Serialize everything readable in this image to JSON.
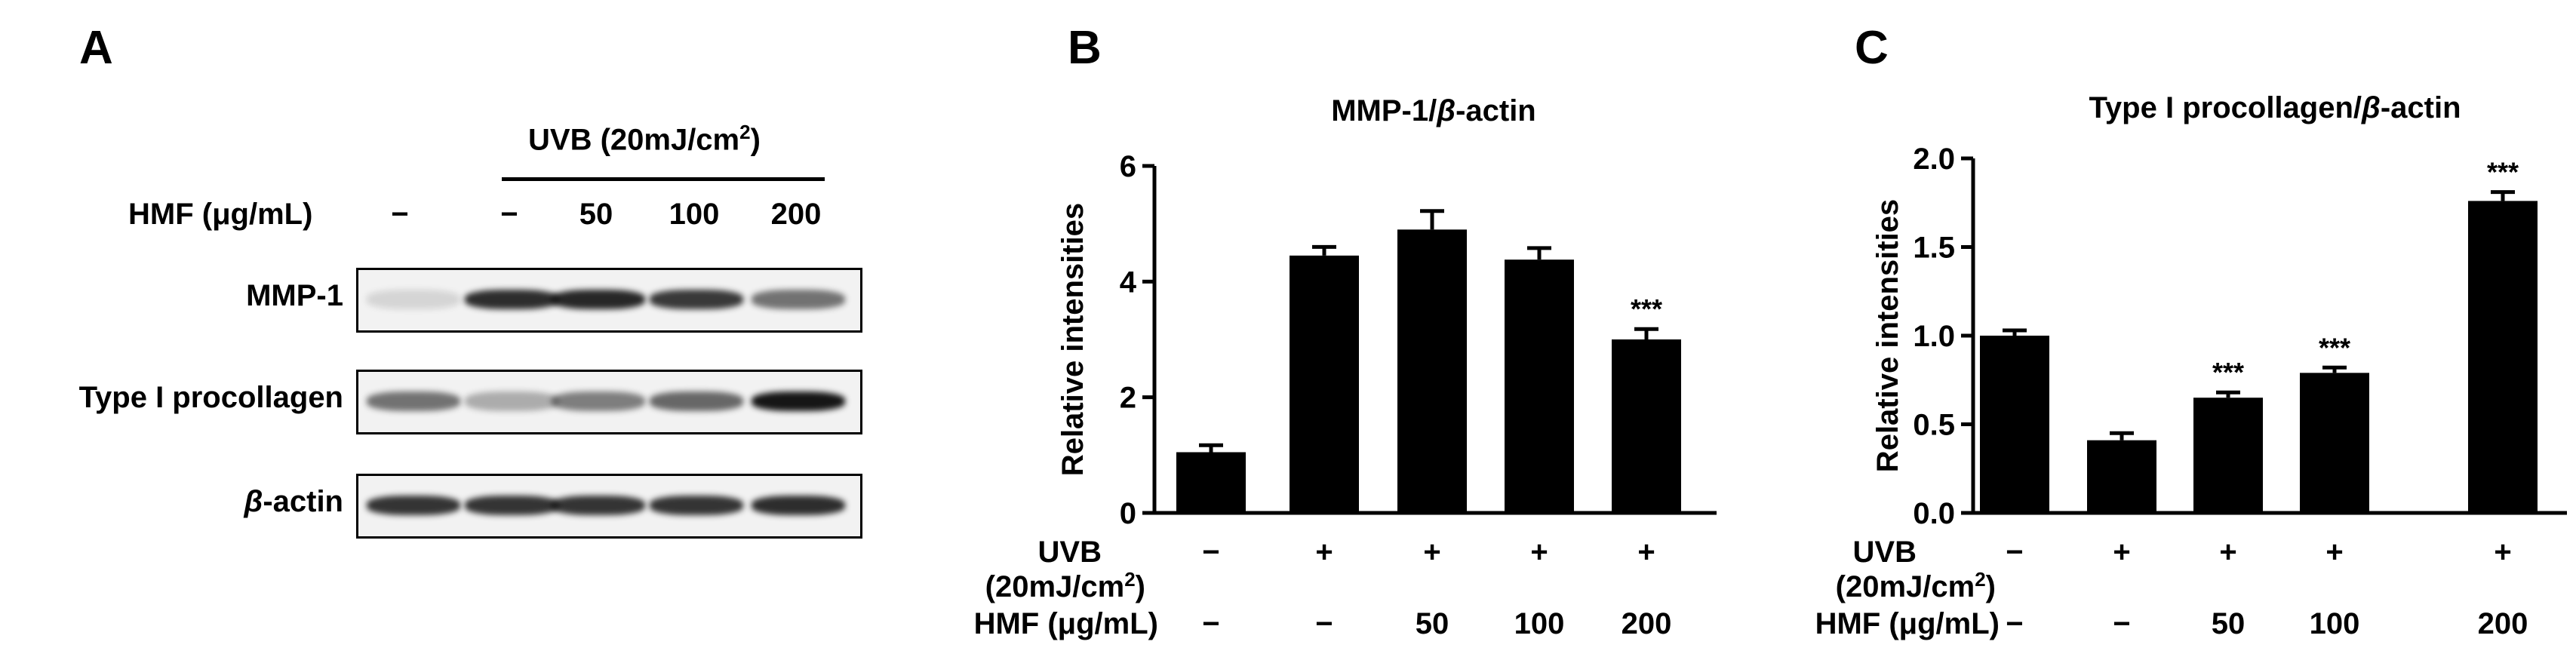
{
  "panels": {
    "a": {
      "letter": "A",
      "uvb_label": "UVB (20mJ/cm",
      "uvb_sup": "2",
      "uvb_close": ")",
      "hmf_label": "HMF (μg/mL)",
      "hmf_values": [
        "−",
        "−",
        "50",
        "100",
        "200"
      ],
      "rows": [
        {
          "label_prefix": "",
          "label": "MMP-1",
          "intensities": [
            0.12,
            0.85,
            0.88,
            0.8,
            0.55
          ]
        },
        {
          "label_prefix": "",
          "label": "Type I procollagen",
          "intensities": [
            0.55,
            0.3,
            0.5,
            0.6,
            0.95
          ]
        },
        {
          "label_prefix": "β",
          "label": "-actin",
          "intensities": [
            0.82,
            0.82,
            0.82,
            0.82,
            0.85
          ]
        }
      ]
    },
    "b": {
      "letter": "B"
    },
    "c": {
      "letter": "C"
    }
  },
  "colors": {
    "bar": "#000000",
    "band": "#111111"
  },
  "chart_data": [
    {
      "type": "bar",
      "title_prefix": "MMP-1/",
      "title_italic": "β",
      "title_suffix": "-actin",
      "ylabel": "Relative intensities",
      "ylim": [
        0,
        6
      ],
      "yticks": [
        "0",
        "2",
        "4",
        "6"
      ],
      "ytick_values": [
        0,
        2,
        4,
        6
      ],
      "uvb_row_label": "UVB",
      "uvb_row_label2": "(20mJ/cm",
      "uvb_row_sup": "2",
      "uvb_row_close": ")",
      "uvb": [
        "−",
        "+",
        "+",
        "+",
        "+"
      ],
      "hmf_row_label": "HMF (μg/mL)",
      "hmf": [
        "−",
        "−",
        "50",
        "100",
        "200"
      ],
      "values": [
        1.05,
        4.45,
        4.9,
        4.38,
        3.0
      ],
      "errors": [
        0.12,
        0.15,
        0.32,
        0.2,
        0.18
      ],
      "annotations": [
        "",
        "",
        "",
        "",
        "***"
      ]
    },
    {
      "type": "bar",
      "title_prefix": "Type I procollagen/",
      "title_italic": "β",
      "title_suffix": "-actin",
      "ylabel": "Relative intensities",
      "ylim": [
        0,
        2.0
      ],
      "yticks": [
        "0.0",
        "0.5",
        "1.0",
        "1.5",
        "2.0"
      ],
      "ytick_values": [
        0,
        0.5,
        1.0,
        1.5,
        2.0
      ],
      "uvb_row_label": "UVB",
      "uvb_row_label2": "(20mJ/cm",
      "uvb_row_sup": "2",
      "uvb_row_close": ")",
      "uvb": [
        "−",
        "+",
        "+",
        "+",
        "+"
      ],
      "hmf_row_label": "HMF (μg/mL)",
      "hmf": [
        "−",
        "−",
        "50",
        "100",
        "200"
      ],
      "values": [
        1.0,
        0.41,
        0.65,
        0.79,
        1.76
      ],
      "errors": [
        0.03,
        0.04,
        0.03,
        0.03,
        0.05
      ],
      "annotations": [
        "",
        "",
        "***",
        "***",
        "***"
      ]
    }
  ]
}
